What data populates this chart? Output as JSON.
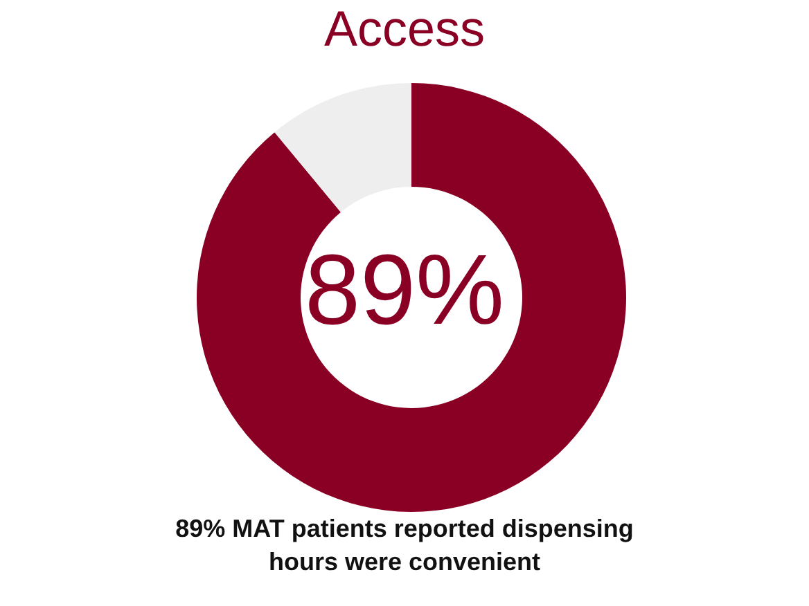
{
  "chart_data": {
    "type": "donut",
    "title": "Access",
    "categories": [
      null,
      null
    ],
    "values": [
      89,
      11
    ],
    "colors": [
      "#8a0024",
      "#eeeeee"
    ],
    "value_labels": [
      "89%",
      null
    ],
    "annotations": [
      "89% MAT patients reported dispensing hours were convenient"
    ],
    "legend": false
  }
}
